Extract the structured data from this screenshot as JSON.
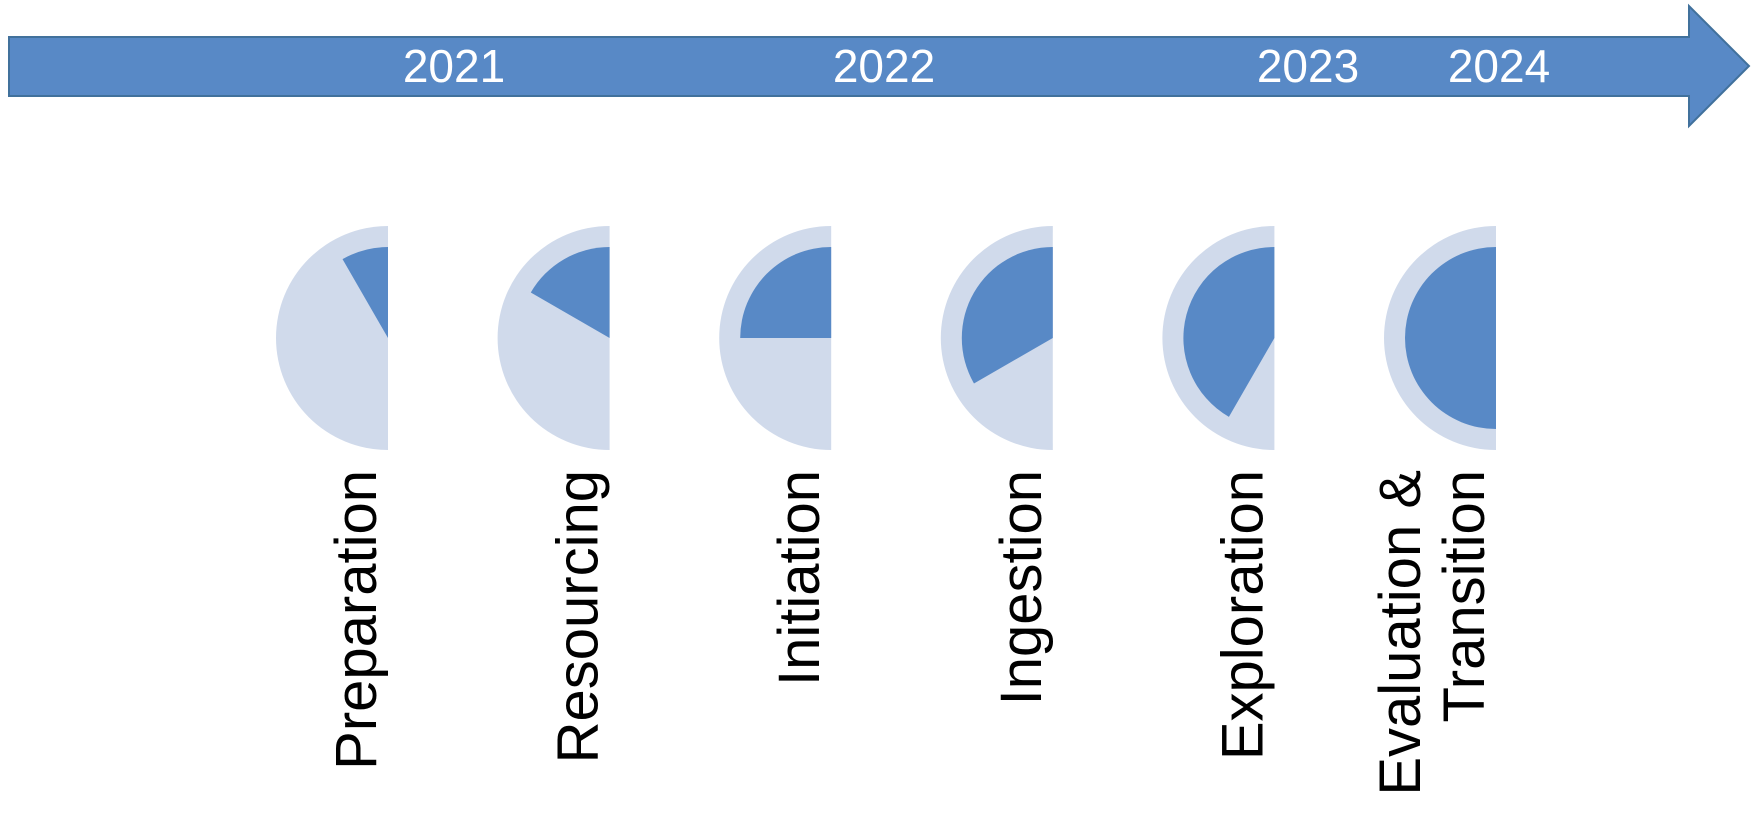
{
  "timeline": {
    "arrow_color": "#5889C6",
    "arrow_border_color": "#41719C",
    "year_text_color": "#FFFFFF",
    "years": [
      "2021",
      "2022",
      "2023",
      "2024"
    ]
  },
  "phases": {
    "track_color": "#D0DAEB",
    "fill_color": "#5889C6",
    "label_color": "#000000",
    "items": [
      {
        "label_lines": [
          "Preparation"
        ],
        "progress": 0.0833
      },
      {
        "label_lines": [
          "Resourcing"
        ],
        "progress": 0.1667
      },
      {
        "label_lines": [
          "Initiation"
        ],
        "progress": 0.25
      },
      {
        "label_lines": [
          "Ingestion"
        ],
        "progress": 0.3333
      },
      {
        "label_lines": [
          "Exploration"
        ],
        "progress": 0.4167
      },
      {
        "label_lines": [
          "Evaluation &",
          "Transition"
        ],
        "progress": 0.5
      }
    ]
  }
}
